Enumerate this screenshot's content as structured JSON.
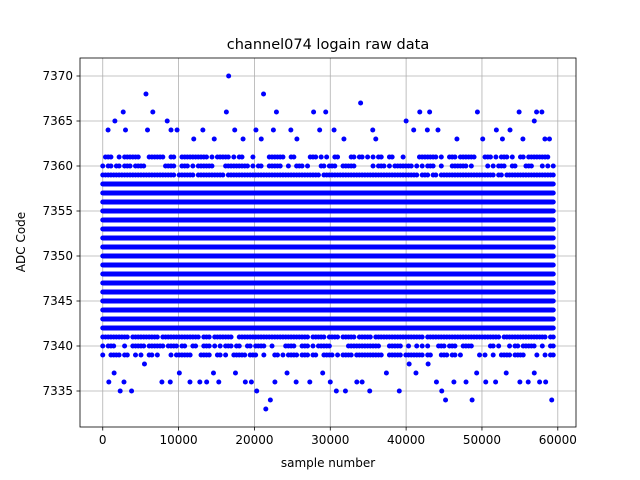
{
  "chart_data": {
    "type": "scatter",
    "title": "channel074 logain raw data",
    "xlabel": "sample number",
    "ylabel": "ADC Code",
    "xlim": [
      -3000,
      62400
    ],
    "ylim": [
      7331.0,
      7372.0
    ],
    "x_ticks": [
      0,
      10000,
      20000,
      30000,
      40000,
      50000,
      60000
    ],
    "y_ticks": [
      7335,
      7340,
      7345,
      7350,
      7355,
      7360,
      7365,
      7370
    ],
    "grid": true,
    "marker_color": "#0000ff",
    "series": [
      {
        "x_range": [
          0,
          59400
        ],
        "dense_y_range": [
          7339,
          7361
        ],
        "sparse_points": [
          [
            700,
            7364
          ],
          [
            1600,
            7365
          ],
          [
            2700,
            7366
          ],
          [
            3000,
            7364
          ],
          [
            5700,
            7368
          ],
          [
            5900,
            7364
          ],
          [
            6600,
            7366
          ],
          [
            8500,
            7365
          ],
          [
            9000,
            7364
          ],
          [
            9800,
            7364
          ],
          [
            12000,
            7363
          ],
          [
            13200,
            7364
          ],
          [
            14700,
            7363
          ],
          [
            16300,
            7366
          ],
          [
            16600,
            7370
          ],
          [
            17400,
            7364
          ],
          [
            18500,
            7363
          ],
          [
            20200,
            7364
          ],
          [
            20900,
            7363
          ],
          [
            21200,
            7368
          ],
          [
            22500,
            7364
          ],
          [
            22900,
            7366
          ],
          [
            24800,
            7364
          ],
          [
            25600,
            7363
          ],
          [
            27800,
            7366
          ],
          [
            28600,
            7364
          ],
          [
            29400,
            7366
          ],
          [
            30500,
            7364
          ],
          [
            31800,
            7363
          ],
          [
            34000,
            7367
          ],
          [
            35600,
            7364
          ],
          [
            36000,
            7363
          ],
          [
            40000,
            7365
          ],
          [
            41000,
            7364
          ],
          [
            41800,
            7366
          ],
          [
            42800,
            7364
          ],
          [
            43100,
            7366
          ],
          [
            44200,
            7364
          ],
          [
            46700,
            7363
          ],
          [
            49400,
            7366
          ],
          [
            50100,
            7363
          ],
          [
            51900,
            7364
          ],
          [
            52700,
            7363
          ],
          [
            53700,
            7364
          ],
          [
            54900,
            7366
          ],
          [
            55400,
            7363
          ],
          [
            56900,
            7365
          ],
          [
            57200,
            7366
          ],
          [
            57900,
            7366
          ],
          [
            58300,
            7363
          ],
          [
            58900,
            7363
          ],
          [
            800,
            7336
          ],
          [
            1500,
            7337
          ],
          [
            2300,
            7335
          ],
          [
            2800,
            7336
          ],
          [
            3800,
            7335
          ],
          [
            5500,
            7338
          ],
          [
            7800,
            7336
          ],
          [
            8900,
            7336
          ],
          [
            10100,
            7337
          ],
          [
            11500,
            7336
          ],
          [
            12800,
            7336
          ],
          [
            13700,
            7336
          ],
          [
            14600,
            7337
          ],
          [
            15300,
            7336
          ],
          [
            17500,
            7337
          ],
          [
            18800,
            7336
          ],
          [
            19600,
            7336
          ],
          [
            20300,
            7335
          ],
          [
            21500,
            7333
          ],
          [
            22100,
            7334
          ],
          [
            22700,
            7336
          ],
          [
            24300,
            7337
          ],
          [
            25500,
            7336
          ],
          [
            27300,
            7336
          ],
          [
            29000,
            7337
          ],
          [
            30000,
            7336
          ],
          [
            30800,
            7335
          ],
          [
            32000,
            7335
          ],
          [
            33500,
            7336
          ],
          [
            34200,
            7336
          ],
          [
            35200,
            7335
          ],
          [
            37400,
            7337
          ],
          [
            39100,
            7335
          ],
          [
            40400,
            7338
          ],
          [
            41300,
            7337
          ],
          [
            42900,
            7338
          ],
          [
            44000,
            7336
          ],
          [
            44700,
            7335
          ],
          [
            45200,
            7334
          ],
          [
            46300,
            7336
          ],
          [
            47900,
            7336
          ],
          [
            48700,
            7334
          ],
          [
            49300,
            7337
          ],
          [
            50500,
            7336
          ],
          [
            51800,
            7336
          ],
          [
            53200,
            7337
          ],
          [
            55000,
            7336
          ],
          [
            56100,
            7336
          ],
          [
            56900,
            7337
          ],
          [
            57600,
            7336
          ],
          [
            58400,
            7336
          ],
          [
            59200,
            7334
          ]
        ]
      }
    ]
  }
}
